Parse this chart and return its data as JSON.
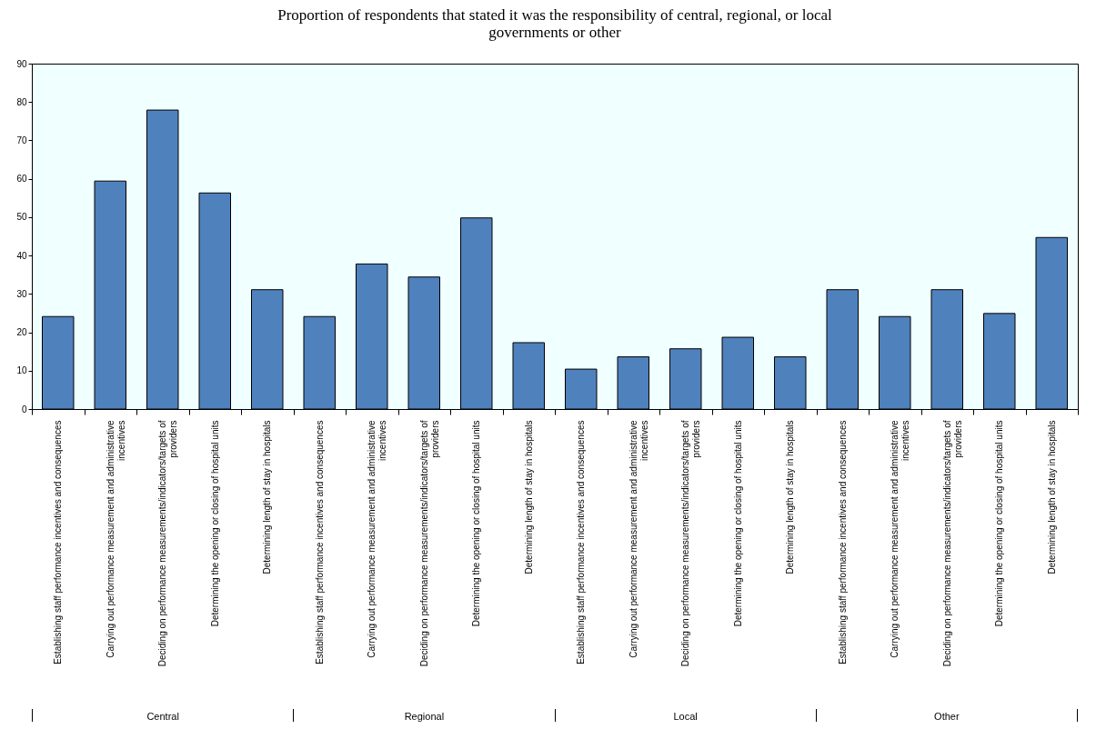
{
  "chart_data": {
    "type": "bar",
    "title": "Proportion of respondents that stated it was the responsibility of central, regional, or local governments or other",
    "categories": [
      "Establishing staff performance incentives and consequences",
      "Carrying out performance measurement and administrative incentives",
      "Deciding on performance measurements/indicators/targets of providers",
      "Determining the opening or closing of hospital units",
      "Determining length of stay in hospitals",
      "Establishing staff performance incentives and consequences",
      "Carrying out performance measurement and administrative incentives",
      "Deciding on performance measurements/indicators/targets of providers",
      "Determining the opening or closing of hospital units",
      "Determining length of stay in hospitals",
      "Establishing staff performance incentives and consequences",
      "Carrying out performance measurement and administrative incentives",
      "Deciding on performance measurements/indicators/targets of providers",
      "Determining the opening or closing of hospital units",
      "Determining length of stay in hospitals",
      "Establishing staff performance incentives and consequences",
      "Carrying out performance measurement and administrative incentives",
      "Deciding on performance measurements/indicators/targets of providers",
      "Determining the opening or closing of hospital units",
      "Determining length of stay in hospitals"
    ],
    "values": [
      24.1,
      59.4,
      77.9,
      56.3,
      31.1,
      24.1,
      37.8,
      34.4,
      49.8,
      17.3,
      10.4,
      13.6,
      15.7,
      18.7,
      13.6,
      31.1,
      24.1,
      31.1,
      24.9,
      44.7
    ],
    "color": "#4f81bd",
    "ylim": [
      0,
      90
    ],
    "yticks": [
      0,
      10,
      20,
      30,
      40,
      50,
      60,
      70,
      80,
      90
    ],
    "grid": false,
    "annotations": [
      "Central",
      "Regional",
      "Local",
      "Other"
    ]
  }
}
